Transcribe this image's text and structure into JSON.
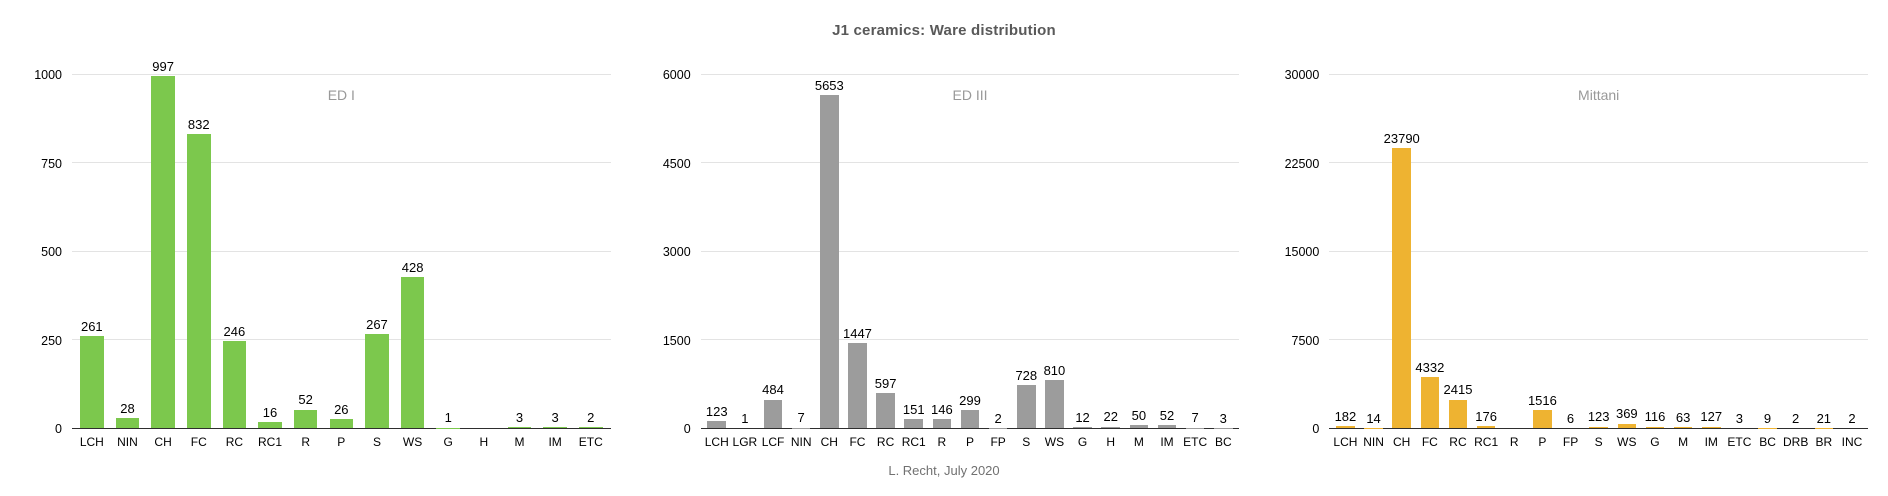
{
  "page": {
    "title": "J1 ceramics: Ware distribution",
    "footer": "L. Recht, July 2020"
  },
  "chart_data": [
    {
      "type": "bar",
      "title": "ED I",
      "color": "#7cc84d",
      "ylim": [
        0,
        1000
      ],
      "yticks": [
        0,
        250,
        500,
        750,
        1000
      ],
      "grid": true,
      "legend_position": "top-center",
      "categories": [
        "LCH",
        "NIN",
        "CH",
        "FC",
        "RC",
        "RC1",
        "R",
        "P",
        "S",
        "WS",
        "G",
        "H",
        "M",
        "IM",
        "ETC"
      ],
      "values": [
        261,
        28,
        997,
        832,
        246,
        16,
        52,
        26,
        267,
        428,
        1,
        null,
        3,
        3,
        2
      ]
    },
    {
      "type": "bar",
      "title": "ED III",
      "color": "#9c9c9c",
      "ylim": [
        0,
        6000
      ],
      "yticks": [
        0,
        1500,
        3000,
        4500,
        6000
      ],
      "grid": true,
      "legend_position": "top-center",
      "categories": [
        "LCH",
        "LGR",
        "LCF",
        "NIN",
        "CH",
        "FC",
        "RC",
        "RC1",
        "R",
        "P",
        "FP",
        "S",
        "WS",
        "G",
        "H",
        "M",
        "IM",
        "ETC",
        "BC"
      ],
      "values": [
        123,
        1,
        484,
        7,
        5653,
        1447,
        597,
        151,
        146,
        299,
        2,
        728,
        810,
        12,
        22,
        50,
        52,
        7,
        3
      ]
    },
    {
      "type": "bar",
      "title": "Mittani",
      "color": "#eeb331",
      "ylim": [
        0,
        30000
      ],
      "yticks": [
        0,
        7500,
        15000,
        22500,
        30000
      ],
      "grid": true,
      "legend_position": "top-center",
      "categories": [
        "LCH",
        "NIN",
        "CH",
        "FC",
        "RC",
        "RC1",
        "R",
        "P",
        "FP",
        "S",
        "WS",
        "G",
        "M",
        "IM",
        "ETC",
        "BC",
        "DRB",
        "BR",
        "INC"
      ],
      "values": [
        182,
        14,
        23790,
        4332,
        2415,
        176,
        null,
        1516,
        6,
        123,
        369,
        116,
        63,
        127,
        3,
        9,
        2,
        21,
        2
      ]
    }
  ],
  "style": {
    "title_color": "#595959",
    "legend_color": "#999999",
    "footer_color": "#717171",
    "gridline_color": "#e3e3e3",
    "axis_line_color": "#2e2e2e",
    "label_color": "#000000"
  }
}
